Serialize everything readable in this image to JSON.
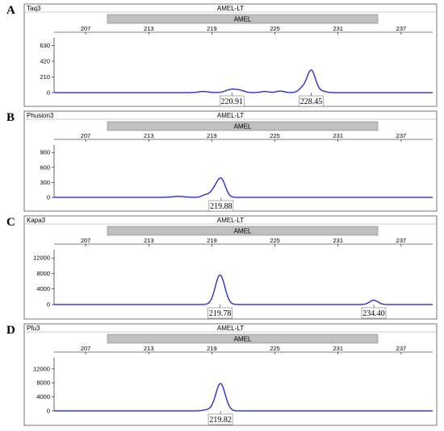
{
  "chart_data": [
    {
      "type": "line",
      "panel_letter": "A",
      "sample": "Taq3",
      "marker": "AMEL-LT",
      "bin_label": "AMEL",
      "x_ticks": [
        207,
        213,
        219,
        225,
        231,
        237
      ],
      "y_ticks": [
        0,
        210,
        420,
        630
      ],
      "xlim": [
        204,
        240
      ],
      "ylim": [
        0,
        700
      ],
      "peaks": [
        {
          "size": 218.2,
          "height": 15,
          "width": 0.5
        },
        {
          "size": 220.91,
          "height": 45,
          "width": 0.55
        },
        {
          "size": 221.8,
          "height": 20,
          "width": 0.4
        },
        {
          "size": 224.0,
          "height": 15,
          "width": 0.4
        },
        {
          "size": 225.5,
          "height": 20,
          "width": 0.4
        },
        {
          "size": 227.6,
          "height": 55,
          "width": 0.35
        },
        {
          "size": 228.45,
          "height": 300,
          "width": 0.4
        },
        {
          "size": 229.5,
          "height": 18,
          "width": 0.4
        }
      ],
      "labeled_peaks": [
        {
          "size": 220.91,
          "label": "220.91"
        },
        {
          "size": 228.45,
          "label": "228.45"
        }
      ]
    },
    {
      "type": "line",
      "panel_letter": "B",
      "sample": "Phusion3",
      "marker": "AMEL-LT",
      "bin_label": "AMEL",
      "x_ticks": [
        207,
        213,
        219,
        225,
        231,
        237
      ],
      "y_ticks": [
        0,
        300,
        600,
        900
      ],
      "xlim": [
        204,
        240
      ],
      "ylim": [
        0,
        1000
      ],
      "peaks": [
        {
          "size": 215.8,
          "height": 20,
          "width": 0.6
        },
        {
          "size": 218.4,
          "height": 50,
          "width": 0.35
        },
        {
          "size": 219.2,
          "height": 120,
          "width": 0.35
        },
        {
          "size": 219.88,
          "height": 370,
          "width": 0.4
        }
      ],
      "labeled_peaks": [
        {
          "size": 219.88,
          "label": "219.88"
        }
      ]
    },
    {
      "type": "line",
      "panel_letter": "C",
      "sample": "Kapa3",
      "marker": "AMEL-LT",
      "bin_label": "AMEL",
      "x_ticks": [
        207,
        213,
        219,
        225,
        231,
        237
      ],
      "y_ticks": [
        0,
        4000,
        8000,
        12000
      ],
      "xlim": [
        204,
        240
      ],
      "ylim": [
        0,
        13500
      ],
      "peaks": [
        {
          "size": 219.78,
          "height": 7600,
          "width": 0.45
        },
        {
          "size": 234.4,
          "height": 1100,
          "width": 0.4
        }
      ],
      "labeled_peaks": [
        {
          "size": 219.78,
          "label": "219.78"
        },
        {
          "size": 234.4,
          "label": "234.40"
        }
      ]
    },
    {
      "type": "line",
      "panel_letter": "D",
      "sample": "Pfu3",
      "marker": "AMEL-LT",
      "bin_label": "AMEL",
      "x_ticks": [
        207,
        213,
        219,
        225,
        231,
        237
      ],
      "y_ticks": [
        0,
        4000,
        8000,
        12000
      ],
      "xlim": [
        204,
        240
      ],
      "ylim": [
        0,
        14500
      ],
      "peaks": [
        {
          "size": 218.6,
          "height": 300,
          "width": 0.4
        },
        {
          "size": 219.82,
          "height": 7800,
          "width": 0.45
        }
      ],
      "labeled_peaks": [
        {
          "size": 219.82,
          "label": "219.82"
        }
      ]
    }
  ],
  "colors": {
    "trace": "#1a1ab4",
    "trace_light": "#8f8fd6",
    "bin_fill": "#c0c0c0",
    "frame": "#555555"
  }
}
